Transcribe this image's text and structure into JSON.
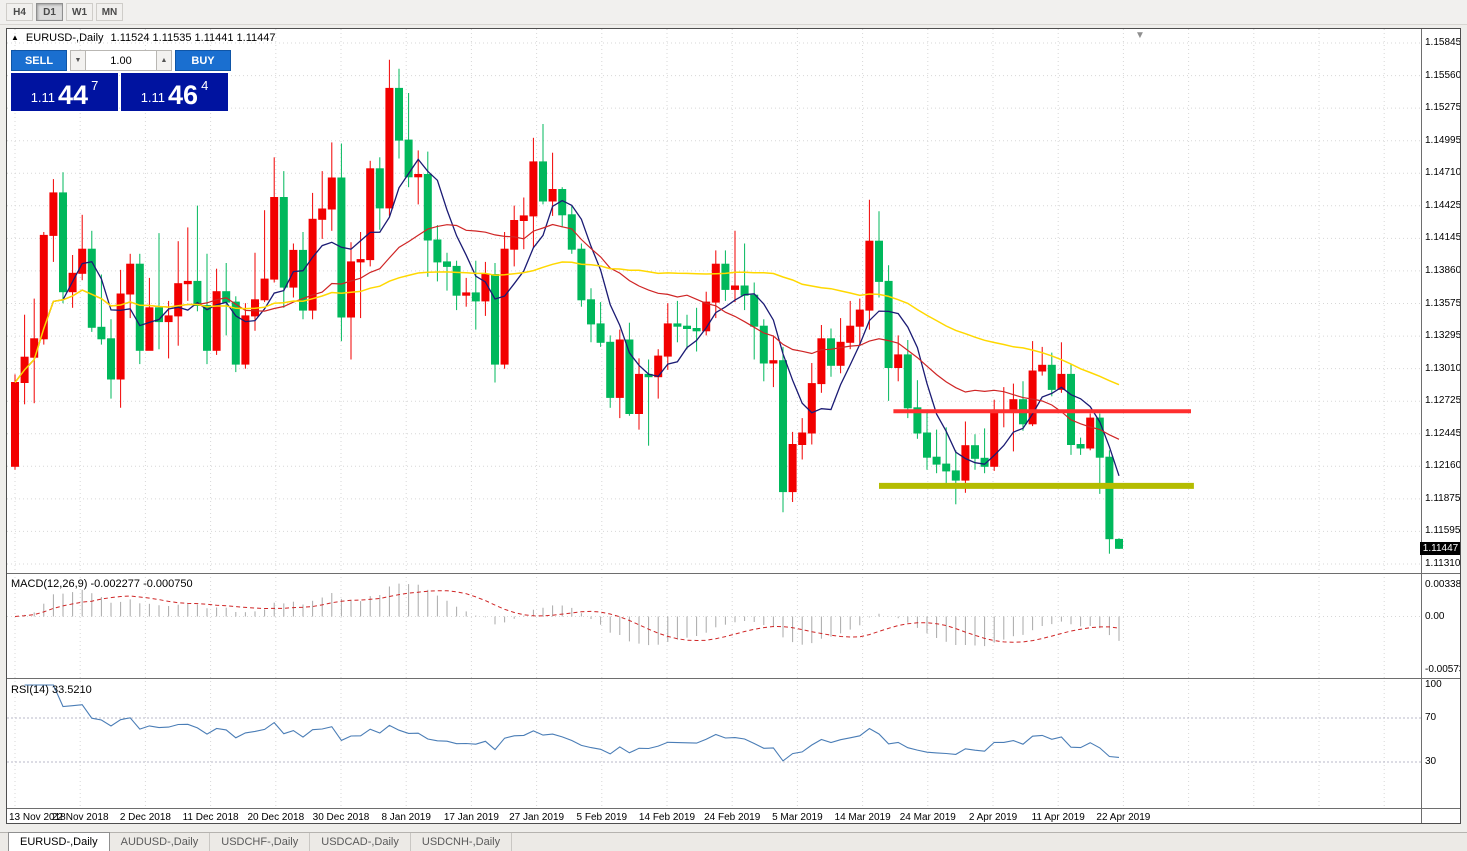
{
  "colors": {
    "bull": "#f20000",
    "bear": "#00b85c",
    "ma_fast": "#1b1b74",
    "ma_mid": "#cf2525",
    "ma_slow": "#ffd800",
    "macd_bar": "#a9a9a9",
    "macd_signal": "#cf2525",
    "rsi_line": "#4a7db6",
    "rsi_level": "#b9b9c9",
    "grid": "#d7d7d7",
    "separator": "#6e6e6e",
    "button_blue": "#1a6fd0",
    "price_panel_bg": "#0013a0",
    "resistance": "#ff2f2f",
    "support": "#b4bc00"
  },
  "toolbar": {
    "timeframes": [
      "H4",
      "D1",
      "W1",
      "MN"
    ],
    "active": "D1"
  },
  "chart_header": {
    "collapse_icon": "▲",
    "title": "EURUSD-,Daily",
    "ohlc": "1.11524 1.11535 1.11441 1.11447"
  },
  "trade_panel": {
    "sell_label": "SELL",
    "buy_label": "BUY",
    "volume": "1.00",
    "decrease_icon": "▼",
    "increase_icon": "▲",
    "sell_price": {
      "prefix": "1.11",
      "big": "44",
      "sup": "7"
    },
    "buy_price": {
      "prefix": "1.11",
      "big": "46",
      "sup": "4"
    }
  },
  "shift_marker_icon": "▼",
  "current_price_tag": "1.11447",
  "price_axis": [
    "1.15845",
    "1.15560",
    "1.15275",
    "1.14995",
    "1.14710",
    "1.14425",
    "1.14145",
    "1.13860",
    "1.13575",
    "1.13295",
    "1.13010",
    "1.12725",
    "1.12445",
    "1.12160",
    "1.11875",
    "1.11595",
    "1.11310"
  ],
  "macd_panel": {
    "label": "MACD(12,26,9) -0.002277 -0.000750",
    "axis_max": "0.003386",
    "axis_zero": "0.00",
    "axis_min": "-0.005737"
  },
  "rsi_panel": {
    "label": "RSI(14) 33.5210",
    "levels": [
      "100",
      "70",
      "30"
    ],
    "level_lines": [
      70,
      30
    ]
  },
  "date_axis": [
    "13 Nov 2018",
    "22 Nov 2018",
    "2 Dec 2018",
    "11 Dec 2018",
    "20 Dec 2018",
    "30 Dec 2018",
    "8 Jan 2019",
    "17 Jan 2019",
    "27 Jan 2019",
    "5 Feb 2019",
    "14 Feb 2019",
    "24 Feb 2019",
    "5 Mar 2019",
    "14 Mar 2019",
    "24 Mar 2019",
    "2 Apr 2019",
    "11 Apr 2019",
    "22 Apr 2019"
  ],
  "tabs": [
    {
      "label": "EURUSD-,Daily",
      "active": true
    },
    {
      "label": "AUDUSD-,Daily",
      "active": false
    },
    {
      "label": "USDCHF-,Daily",
      "active": false
    },
    {
      "label": "USDCAD-,Daily",
      "active": false
    },
    {
      "label": "USDCNH-,Daily",
      "active": false
    }
  ],
  "chart_data": {
    "type": "candlestick",
    "symbol": "EURUSD-",
    "timeframe": "Daily",
    "note": "red candles = bullish, green candles = bearish",
    "y_axis_labels": [
      "1.15845",
      "1.15560",
      "1.15275",
      "1.14995",
      "1.14710",
      "1.14425",
      "1.14145",
      "1.13860",
      "1.13575",
      "1.13295",
      "1.13010",
      "1.12725",
      "1.12445",
      "1.12160",
      "1.11875",
      "1.11595",
      "1.11310"
    ],
    "x_axis_labels": [
      "13 Nov 2018",
      "22 Nov 2018",
      "2 Dec 2018",
      "11 Dec 2018",
      "20 Dec 2018",
      "30 Dec 2018",
      "8 Jan 2019",
      "17 Jan 2019",
      "27 Jan 2019",
      "5 Feb 2019",
      "14 Feb 2019",
      "24 Feb 2019",
      "5 Mar 2019",
      "14 Mar 2019",
      "24 Mar 2019",
      "2 Apr 2019",
      "11 Apr 2019",
      "22 Apr 2019"
    ],
    "candles_ohlc": [
      [
        1.1216,
        1.1296,
        1.1213,
        1.1289
      ],
      [
        1.1289,
        1.1348,
        1.127,
        1.1311
      ],
      [
        1.1311,
        1.1362,
        1.1271,
        1.1327
      ],
      [
        1.1327,
        1.142,
        1.1322,
        1.1417
      ],
      [
        1.1417,
        1.1466,
        1.1394,
        1.1454
      ],
      [
        1.1454,
        1.1472,
        1.1358,
        1.1368
      ],
      [
        1.1368,
        1.14,
        1.1354,
        1.1384
      ],
      [
        1.1384,
        1.1435,
        1.1378,
        1.1405
      ],
      [
        1.1405,
        1.1421,
        1.1333,
        1.1337
      ],
      [
        1.1337,
        1.1383,
        1.1322,
        1.1327
      ],
      [
        1.1327,
        1.1344,
        1.1275,
        1.1292
      ],
      [
        1.1292,
        1.1387,
        1.1267,
        1.1366
      ],
      [
        1.1366,
        1.1401,
        1.1345,
        1.1392
      ],
      [
        1.1392,
        1.1401,
        1.1305,
        1.1317
      ],
      [
        1.1317,
        1.138,
        1.1317,
        1.1354
      ],
      [
        1.1354,
        1.1419,
        1.1318,
        1.1342
      ],
      [
        1.1342,
        1.136,
        1.131,
        1.1347
      ],
      [
        1.1347,
        1.1412,
        1.1321,
        1.1375
      ],
      [
        1.1375,
        1.1424,
        1.136,
        1.1377
      ],
      [
        1.1377,
        1.1443,
        1.1351,
        1.1356
      ],
      [
        1.1356,
        1.1401,
        1.1305,
        1.1317
      ],
      [
        1.1317,
        1.1388,
        1.1313,
        1.1368
      ],
      [
        1.1368,
        1.1393,
        1.133,
        1.1359
      ],
      [
        1.1359,
        1.1364,
        1.1298,
        1.1305
      ],
      [
        1.1305,
        1.1358,
        1.1301,
        1.1347
      ],
      [
        1.1347,
        1.1402,
        1.1334,
        1.1361
      ],
      [
        1.1361,
        1.1439,
        1.1359,
        1.1379
      ],
      [
        1.1379,
        1.1485,
        1.1376,
        1.145
      ],
      [
        1.145,
        1.1473,
        1.1354,
        1.1372
      ],
      [
        1.1372,
        1.141,
        1.1363,
        1.1404
      ],
      [
        1.1404,
        1.142,
        1.1344,
        1.1352
      ],
      [
        1.1352,
        1.1454,
        1.1344,
        1.1431
      ],
      [
        1.1431,
        1.1473,
        1.1414,
        1.144
      ],
      [
        1.144,
        1.1498,
        1.1421,
        1.1467
      ],
      [
        1.1467,
        1.1497,
        1.1325,
        1.1346
      ],
      [
        1.1346,
        1.1411,
        1.1309,
        1.1394
      ],
      [
        1.1394,
        1.142,
        1.1345,
        1.1396
      ],
      [
        1.1396,
        1.1482,
        1.139,
        1.1475
      ],
      [
        1.1475,
        1.1485,
        1.1422,
        1.1441
      ],
      [
        1.1441,
        1.157,
        1.1434,
        1.1545
      ],
      [
        1.1545,
        1.1562,
        1.1484,
        1.15
      ],
      [
        1.15,
        1.1541,
        1.1459,
        1.1468
      ],
      [
        1.1468,
        1.1491,
        1.1444,
        1.147
      ],
      [
        1.147,
        1.149,
        1.1381,
        1.1413
      ],
      [
        1.1413,
        1.1426,
        1.1377,
        1.1394
      ],
      [
        1.1394,
        1.1402,
        1.1369,
        1.139
      ],
      [
        1.139,
        1.1395,
        1.1352,
        1.1365
      ],
      [
        1.1365,
        1.138,
        1.1355,
        1.1367
      ],
      [
        1.1367,
        1.1395,
        1.1335,
        1.136
      ],
      [
        1.136,
        1.1394,
        1.1347,
        1.1383
      ],
      [
        1.1383,
        1.1393,
        1.1289,
        1.1305
      ],
      [
        1.1305,
        1.142,
        1.1301,
        1.1405
      ],
      [
        1.1405,
        1.1443,
        1.139,
        1.143
      ],
      [
        1.143,
        1.145,
        1.1405,
        1.1434
      ],
      [
        1.1434,
        1.1502,
        1.1406,
        1.1481
      ],
      [
        1.1481,
        1.1514,
        1.1444,
        1.1447
      ],
      [
        1.1447,
        1.1489,
        1.1434,
        1.1457
      ],
      [
        1.1457,
        1.1459,
        1.1424,
        1.1435
      ],
      [
        1.1435,
        1.1443,
        1.1401,
        1.1405
      ],
      [
        1.1405,
        1.141,
        1.1355,
        1.1361
      ],
      [
        1.1361,
        1.1371,
        1.1324,
        1.134
      ],
      [
        1.134,
        1.1359,
        1.132,
        1.1324
      ],
      [
        1.1324,
        1.133,
        1.1267,
        1.1276
      ],
      [
        1.1276,
        1.1335,
        1.1258,
        1.1326
      ],
      [
        1.1326,
        1.1341,
        1.126,
        1.1262
      ],
      [
        1.1262,
        1.131,
        1.1248,
        1.1296
      ],
      [
        1.1296,
        1.1309,
        1.1234,
        1.1294
      ],
      [
        1.1294,
        1.1318,
        1.1275,
        1.1312
      ],
      [
        1.1312,
        1.1358,
        1.13,
        1.134
      ],
      [
        1.134,
        1.136,
        1.1324,
        1.1338
      ],
      [
        1.1338,
        1.1348,
        1.1318,
        1.1336
      ],
      [
        1.1336,
        1.1354,
        1.1316,
        1.1334
      ],
      [
        1.1334,
        1.1368,
        1.133,
        1.1359
      ],
      [
        1.1359,
        1.1404,
        1.1345,
        1.1392
      ],
      [
        1.1392,
        1.1404,
        1.136,
        1.137
      ],
      [
        1.137,
        1.1421,
        1.1359,
        1.1373
      ],
      [
        1.1373,
        1.141,
        1.1352,
        1.1365
      ],
      [
        1.1365,
        1.1376,
        1.1309,
        1.1338
      ],
      [
        1.1338,
        1.1344,
        1.129,
        1.1306
      ],
      [
        1.1306,
        1.133,
        1.1285,
        1.1308
      ],
      [
        1.1308,
        1.132,
        1.1176,
        1.1194
      ],
      [
        1.1194,
        1.1246,
        1.1185,
        1.1235
      ],
      [
        1.1235,
        1.1258,
        1.1222,
        1.1245
      ],
      [
        1.1245,
        1.1306,
        1.1235,
        1.1288
      ],
      [
        1.1288,
        1.1339,
        1.128,
        1.1327
      ],
      [
        1.1327,
        1.1336,
        1.1294,
        1.1304
      ],
      [
        1.1304,
        1.1345,
        1.1297,
        1.1324
      ],
      [
        1.1324,
        1.136,
        1.1318,
        1.1338
      ],
      [
        1.1338,
        1.1362,
        1.1322,
        1.1352
      ],
      [
        1.1352,
        1.1448,
        1.1335,
        1.1412
      ],
      [
        1.1412,
        1.1438,
        1.1363,
        1.1377
      ],
      [
        1.1377,
        1.1391,
        1.1273,
        1.1302
      ],
      [
        1.1302,
        1.133,
        1.129,
        1.1313
      ],
      [
        1.1313,
        1.1326,
        1.1258,
        1.1267
      ],
      [
        1.1267,
        1.1291,
        1.124,
        1.1245
      ],
      [
        1.1245,
        1.1263,
        1.1213,
        1.1224
      ],
      [
        1.1224,
        1.1248,
        1.121,
        1.1218
      ],
      [
        1.1218,
        1.125,
        1.12,
        1.1212
      ],
      [
        1.1212,
        1.123,
        1.1183,
        1.1204
      ],
      [
        1.1204,
        1.1255,
        1.1193,
        1.1234
      ],
      [
        1.1234,
        1.1244,
        1.1213,
        1.1223
      ],
      [
        1.1223,
        1.1249,
        1.121,
        1.1216
      ],
      [
        1.1216,
        1.1274,
        1.1212,
        1.1264
      ],
      [
        1.1264,
        1.1285,
        1.125,
        1.1264
      ],
      [
        1.1264,
        1.1288,
        1.1229,
        1.1274
      ],
      [
        1.1274,
        1.129,
        1.1247,
        1.1253
      ],
      [
        1.1253,
        1.1325,
        1.1251,
        1.1299
      ],
      [
        1.1299,
        1.132,
        1.1295,
        1.1304
      ],
      [
        1.1304,
        1.1315,
        1.1277,
        1.1283
      ],
      [
        1.1283,
        1.1324,
        1.128,
        1.1296
      ],
      [
        1.1296,
        1.1305,
        1.1226,
        1.1235
      ],
      [
        1.1235,
        1.1241,
        1.1226,
        1.1232
      ],
      [
        1.1232,
        1.1262,
        1.123,
        1.1258
      ],
      [
        1.1258,
        1.1262,
        1.1192,
        1.1224
      ],
      [
        1.1224,
        1.123,
        1.114,
        1.1153
      ],
      [
        1.11524,
        1.11535,
        1.11441,
        1.11447
      ]
    ],
    "overlays": [
      {
        "name": "ma-fast",
        "period": 6,
        "color_key": "ma_fast",
        "width": 1.3
      },
      {
        "name": "ma-mid",
        "period": 20,
        "color_key": "ma_mid",
        "width": 1.2
      },
      {
        "name": "ma-slow",
        "period": 55,
        "color_key": "ma_slow",
        "width": 1.5
      }
    ],
    "hlines": [
      {
        "name": "resistance-line",
        "price": 1.1264,
        "from_bar": 91.5,
        "to_bar": 122.5,
        "color_key": "resistance",
        "stroke_width": 4
      },
      {
        "name": "support-line",
        "price": 1.1199,
        "from_bar": 90,
        "to_bar": 122.8,
        "color_key": "support",
        "stroke_width": 6
      }
    ],
    "indicators": [
      {
        "name": "MACD",
        "fast": 12,
        "slow": 26,
        "signal": 9,
        "current": "-0.002277 -0.000750",
        "axis": [
          "0.003386",
          "0.00",
          "-0.005737"
        ]
      },
      {
        "name": "RSI",
        "period": 14,
        "current": 33.521,
        "levels": [
          70,
          30
        ]
      }
    ]
  }
}
